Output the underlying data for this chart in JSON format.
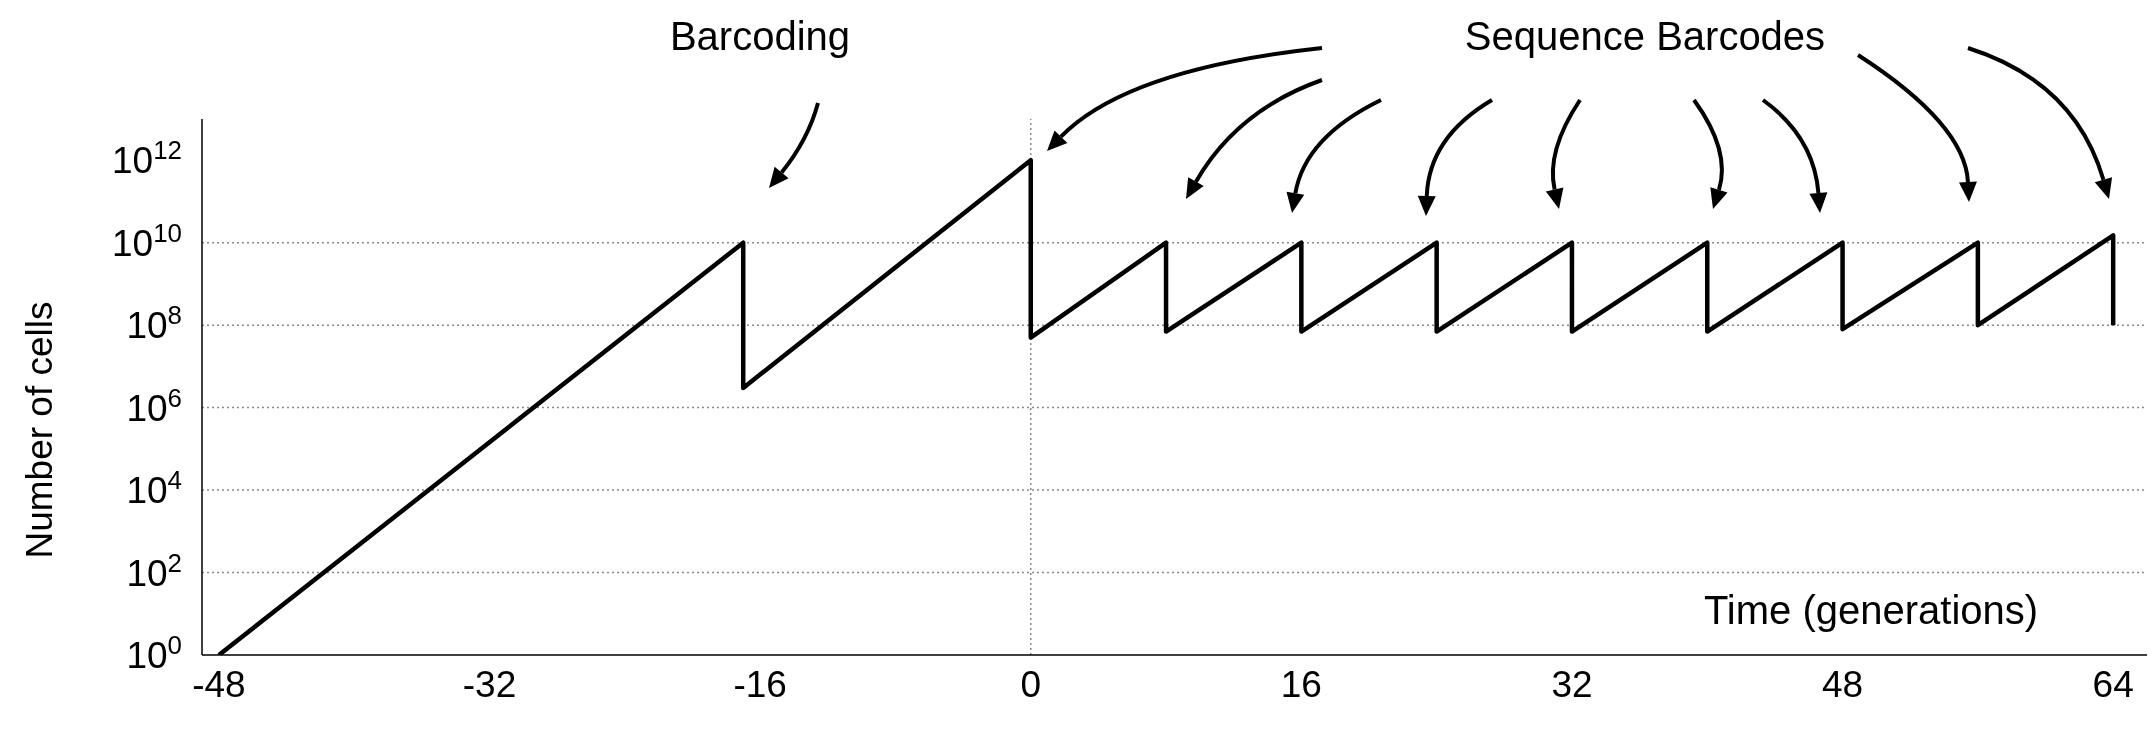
{
  "chart_data": {
    "type": "line",
    "xlabel": "Time (generations)",
    "ylabel": "Number of cells",
    "annotations": [
      "Barcoding",
      "Sequence Barcodes"
    ],
    "x": [
      -48,
      -17,
      -17,
      0,
      0,
      8,
      8,
      16,
      16,
      24,
      24,
      32,
      32,
      40,
      40,
      48,
      48,
      56,
      56,
      64,
      64
    ],
    "values": [
      1,
      10000000000.0,
      3000000.0,
      1000000000000.0,
      50000000.0,
      10000000000.0,
      70000000.0,
      10000000000.0,
      70000000.0,
      10000000000.0,
      70000000.0,
      10000000000.0,
      70000000.0,
      10000000000.0,
      70000000.0,
      10000000000.0,
      80000000.0,
      10000000000.0,
      100000000.0,
      15000000000.0,
      100000000.0
    ],
    "color": "#000000",
    "line_style": "solid",
    "log": "y",
    "xlim": [
      -49,
      66
    ],
    "xticks": [
      -48,
      -32,
      -16,
      0,
      16,
      32,
      48,
      64
    ],
    "ylim": [
      1,
      10000000000000.0
    ],
    "yticks": [
      {
        "value": 1,
        "label": "10$^{0}$"
      },
      {
        "value": 100,
        "label": "10$^{2}$"
      },
      {
        "value": 10000,
        "label": "10$^{4}$"
      },
      {
        "value": 1000000,
        "label": "10$^{6}$"
      },
      {
        "value": 100000000,
        "label": "10$^{8}$"
      },
      {
        "value": 10000000000,
        "label": "10$^{10}$"
      },
      {
        "value": 1000000000000,
        "label": "10$^{12}$"
      }
    ],
    "ref_lines": [
      {
        "axis": "y",
        "value": 100,
        "color": "#888888",
        "line_style": "dotted"
      },
      {
        "axis": "y",
        "value": 10000,
        "color": "#888888",
        "line_style": "dotted"
      },
      {
        "axis": "y",
        "value": 1000000,
        "color": "#888888",
        "line_style": "dotted"
      },
      {
        "axis": "y",
        "value": 100000000,
        "color": "#888888",
        "line_style": "dotted"
      },
      {
        "axis": "y",
        "value": 10000000000,
        "color": "#888888",
        "line_style": "dotted"
      },
      {
        "axis": "x",
        "value": 0,
        "color": "#888888",
        "line_style": "dotted"
      }
    ]
  }
}
